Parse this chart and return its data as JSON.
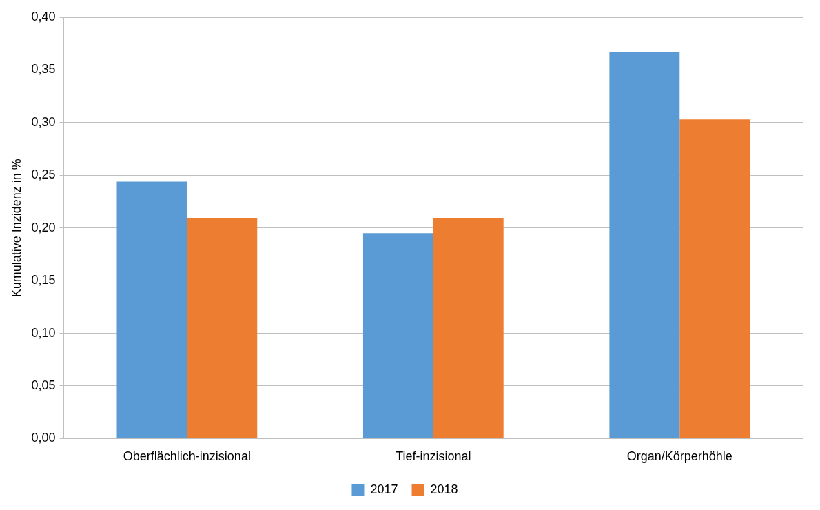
{
  "chart_data": {
    "type": "bar",
    "ylabel": "Kumulative Inzidenz in %",
    "categories": [
      "Oberflächlich-inzisional",
      "Tief-inzisional",
      "Organ/Körperhöhle"
    ],
    "series": [
      {
        "name": "2017",
        "color": "#5b9bd5",
        "values": [
          0.244,
          0.195,
          0.367
        ]
      },
      {
        "name": "2018",
        "color": "#ed7d31",
        "values": [
          0.209,
          0.209,
          0.303
        ]
      }
    ],
    "ylim": [
      0,
      0.4
    ],
    "yticks": [
      {
        "value": 0,
        "label": "0,00"
      },
      {
        "value": 0.05,
        "label": "0,05"
      },
      {
        "value": 0.1,
        "label": "0,10"
      },
      {
        "value": 0.15,
        "label": "0,15"
      },
      {
        "value": 0.2,
        "label": "0,20"
      },
      {
        "value": 0.25,
        "label": "0,25"
      },
      {
        "value": 0.3,
        "label": "0,30"
      },
      {
        "value": 0.35,
        "label": "0,35"
      },
      {
        "value": 0.4,
        "label": "0,40"
      }
    ],
    "grid": "y",
    "legend": "bottom"
  }
}
